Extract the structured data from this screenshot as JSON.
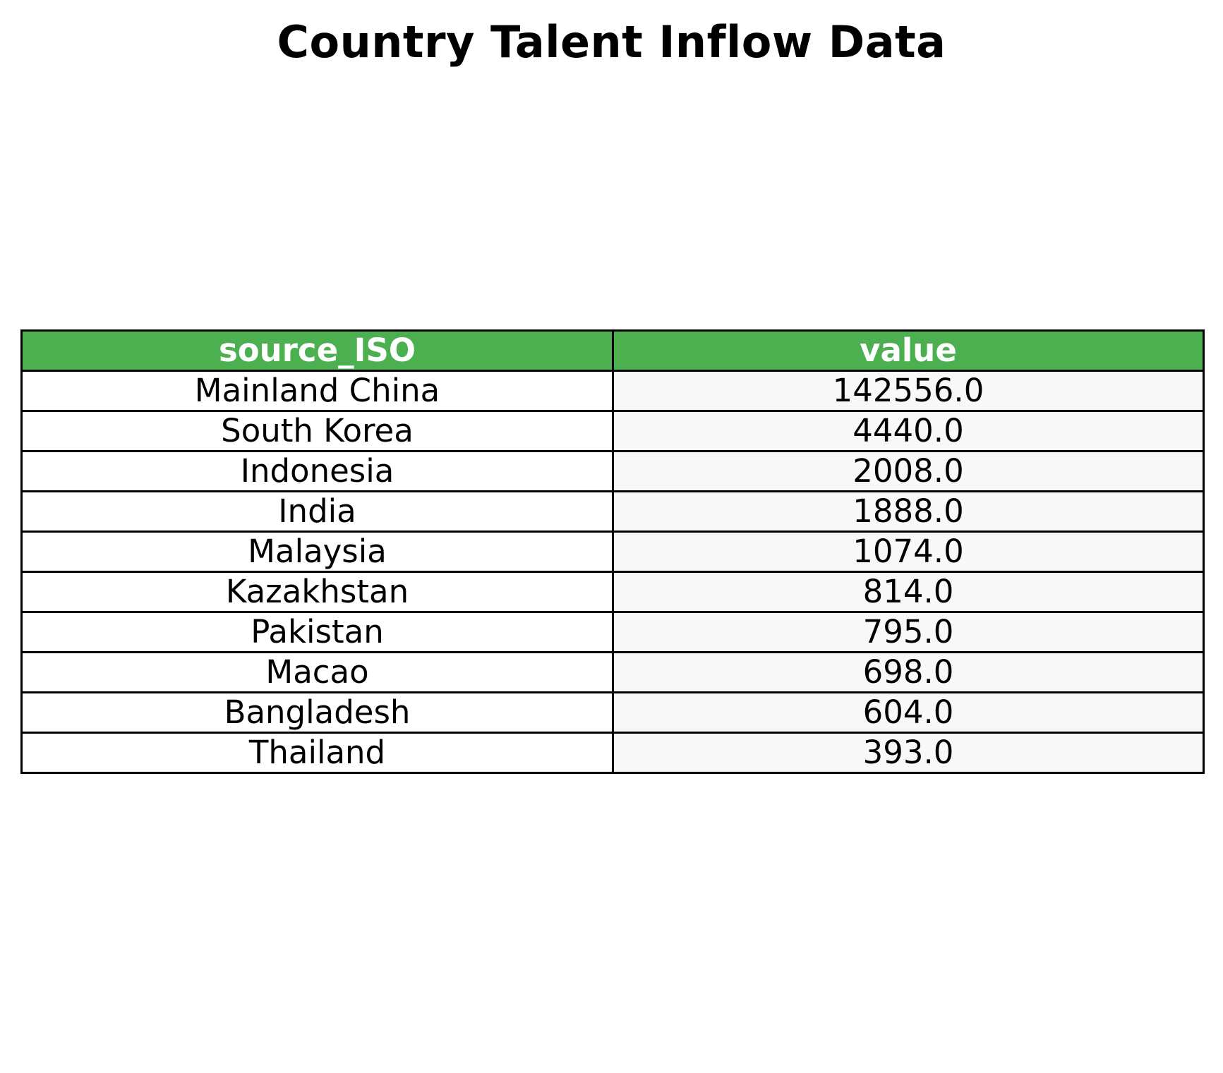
{
  "chart_data": {
    "type": "table",
    "title": "Country Talent Inflow Data",
    "columns": [
      "source_ISO",
      "value"
    ],
    "rows": [
      {
        "source_ISO": "Mainland China",
        "value": "142556.0"
      },
      {
        "source_ISO": "South Korea",
        "value": "4440.0"
      },
      {
        "source_ISO": "Indonesia",
        "value": "2008.0"
      },
      {
        "source_ISO": "India",
        "value": "1888.0"
      },
      {
        "source_ISO": "Malaysia",
        "value": "1074.0"
      },
      {
        "source_ISO": "Kazakhstan",
        "value": "814.0"
      },
      {
        "source_ISO": "Pakistan",
        "value": "795.0"
      },
      {
        "source_ISO": "Macao",
        "value": "698.0"
      },
      {
        "source_ISO": "Bangladesh",
        "value": "604.0"
      },
      {
        "source_ISO": "Thailand",
        "value": "393.0"
      }
    ],
    "colors": {
      "header_background": "#4caf50",
      "header_text": "#ffffff",
      "value_column_background": "#f8f8f8",
      "border": "#000000"
    }
  }
}
